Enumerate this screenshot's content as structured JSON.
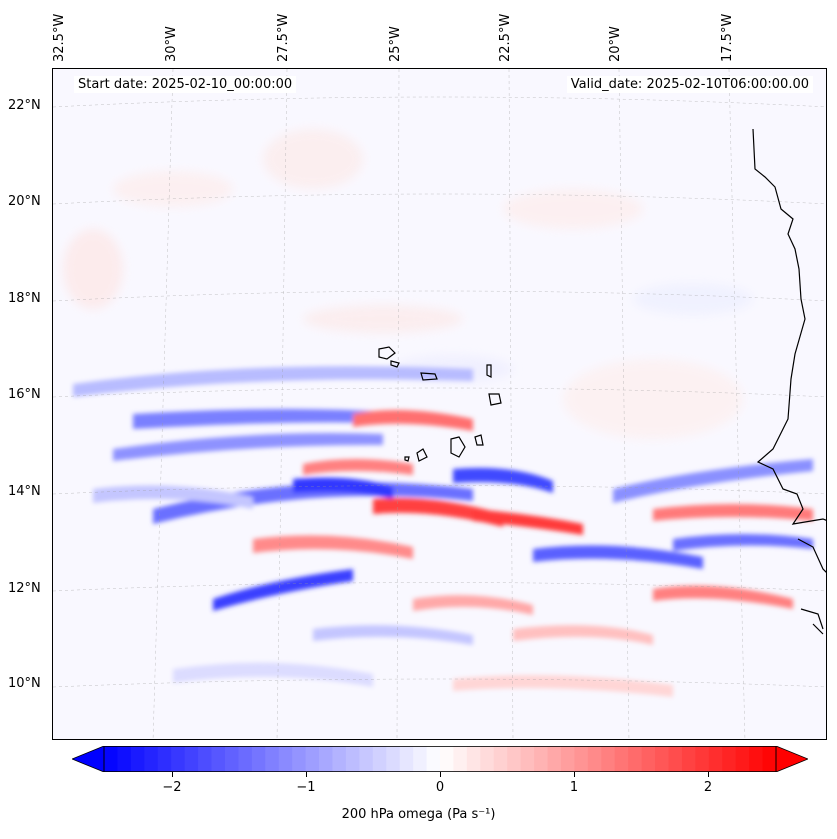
{
  "header": {
    "start_date": "Start date: 2025-02-10_00:00:00",
    "valid_date": "Valid_date: 2025-02-10T06:00:00.00"
  },
  "axes": {
    "lon_labels": [
      "32.5°W",
      "30°W",
      "27.5°W",
      "25°W",
      "22.5°W",
      "20°W",
      "17.5°W"
    ],
    "lat_labels": [
      "22°N",
      "20°N",
      "18°N",
      "16°N",
      "14°N",
      "12°N",
      "10°N"
    ]
  },
  "colorbar": {
    "ticks": [
      "−2",
      "−1",
      "0",
      "1",
      "2"
    ],
    "tick_values": [
      -2,
      -1,
      0,
      1,
      2
    ],
    "range": [
      -2.5,
      2.5
    ],
    "label": "200 hPa omega (Pa s⁻¹)",
    "low_color": "#0000ff",
    "mid_color": "#ffffff",
    "high_color": "#ff0000"
  }
}
